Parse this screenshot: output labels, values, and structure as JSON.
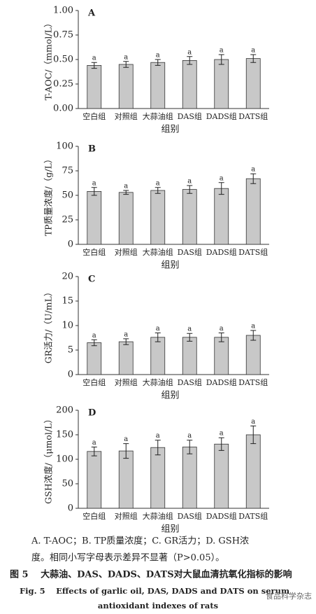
{
  "chart_data": [
    {
      "type": "bar",
      "panel": "A",
      "y_label": "T-AOC/（mmol/L）",
      "x_label": "组别",
      "categories": [
        "空白组",
        "对照组",
        "大蒜油组",
        "DAS组",
        "DADS组",
        "DATS组"
      ],
      "values": [
        0.44,
        0.45,
        0.47,
        0.49,
        0.5,
        0.51
      ],
      "errors": [
        0.03,
        0.03,
        0.03,
        0.04,
        0.05,
        0.04
      ],
      "letters": [
        "a",
        "a",
        "a",
        "a",
        "a",
        "a"
      ],
      "color": "#c8c8c8",
      "ylim": [
        0,
        1
      ],
      "yticks": [
        {
          "value": 0,
          "label": "0.00"
        },
        {
          "value": 0.25,
          "label": "0.25"
        },
        {
          "value": 0.5,
          "label": "0.50"
        },
        {
          "value": 0.75,
          "label": "0.75"
        },
        {
          "value": 1,
          "label": "1.00"
        }
      ]
    },
    {
      "type": "bar",
      "panel": "B",
      "y_label": "TP质量浓度/（g/L）",
      "x_label": "组别",
      "categories": [
        "空白组",
        "对照组",
        "大蒜油组",
        "DAS组",
        "DADS组",
        "DATS组"
      ],
      "values": [
        54,
        53,
        55,
        56,
        57,
        67
      ],
      "errors": [
        4,
        2,
        3,
        4,
        6,
        5
      ],
      "letters": [
        "a",
        "a",
        "a",
        "a",
        "a",
        "a"
      ],
      "color": "#c8c8c8",
      "ylim": [
        0,
        100
      ],
      "yticks": [
        0,
        25,
        50,
        75,
        100
      ]
    },
    {
      "type": "bar",
      "panel": "C",
      "y_label": "GR活力/（U/mL）",
      "x_label": "组别",
      "categories": [
        "空白组",
        "对照组",
        "大蒜油组",
        "DAS组",
        "DADS组",
        "DATS组"
      ],
      "values": [
        6.5,
        6.7,
        7.6,
        7.6,
        7.6,
        8.0
      ],
      "errors": [
        0.6,
        0.6,
        0.9,
        0.8,
        0.9,
        1.0
      ],
      "letters": [
        "a",
        "a",
        "a",
        "a",
        "a",
        "a"
      ],
      "color": "#c8c8c8",
      "ylim": [
        0,
        20
      ],
      "yticks": [
        0,
        5,
        10,
        15,
        20
      ]
    },
    {
      "type": "bar",
      "panel": "D",
      "y_label": "GSH浓度/（μmol/L）",
      "x_label": "组别",
      "categories": [
        "空白组",
        "对照组",
        "大蒜油组",
        "DAS组",
        "DADS组",
        "DATS组"
      ],
      "values": [
        116,
        117,
        124,
        125,
        131,
        150
      ],
      "errors": [
        9,
        15,
        15,
        14,
        13,
        18
      ],
      "letters": [
        "a",
        "a",
        "a",
        "a",
        "a",
        "a"
      ],
      "color": "#c8c8c8",
      "ylim": [
        0,
        200
      ],
      "yticks": [
        0,
        50,
        100,
        150,
        200
      ]
    }
  ],
  "caption": [
    "A. T-AOC；B. TP质量浓度；C. GR活力；D. GSH浓",
    "度。相同小写字母表示差异不显著（P>0.05）。"
  ],
  "title_cn": "图 5　 大蒜油、DAS、DADS、DATS对大鼠血清抗氧化指标的影响",
  "title_en": [
    "Fig. 5　 Effects of garlic oil, DAS, DADS and DATS on serum",
    "antioxidant indexes of rats"
  ],
  "watermark": "食品科学杂志"
}
